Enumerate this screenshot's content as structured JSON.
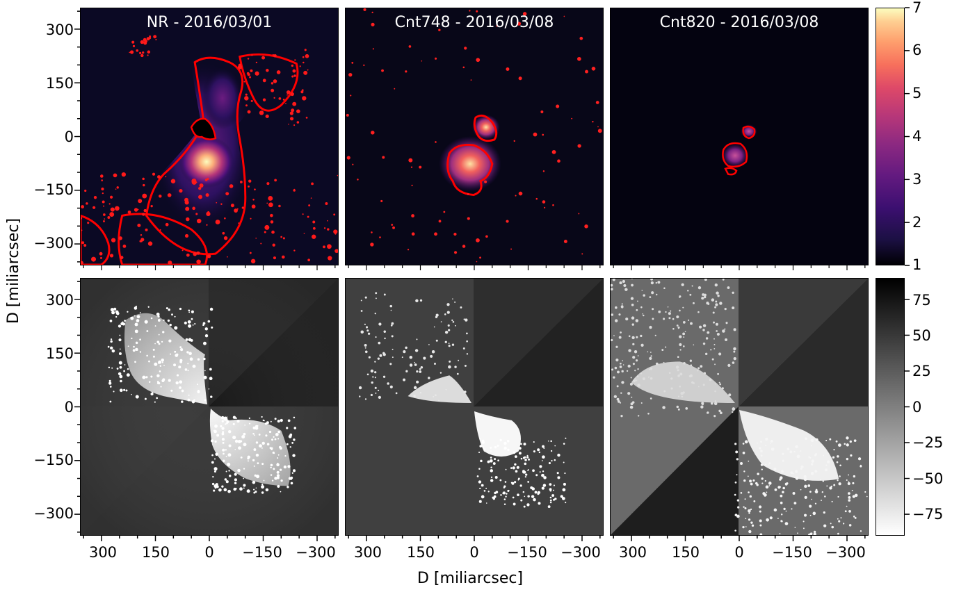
{
  "chart_data": [
    {
      "type": "heatmap",
      "title": "NR - 2016/03/01",
      "row": "intensity",
      "ylabel": "D [miliarcsec]",
      "xlabel": "D [miliarcsec]",
      "xlim": [
        360,
        -360
      ],
      "ylim": [
        -360,
        360
      ],
      "colormap": "magma",
      "contour_color": "#ff0000"
    },
    {
      "type": "heatmap",
      "title": "Cnt748 - 2016/03/08",
      "row": "intensity",
      "xlim": [
        360,
        -360
      ],
      "ylim": [
        -360,
        360
      ],
      "colormap": "magma",
      "contour_color": "#ff0000"
    },
    {
      "type": "heatmap",
      "title": "Cnt820 - 2016/03/08",
      "row": "intensity",
      "xlim": [
        360,
        -360
      ],
      "ylim": [
        -360,
        360
      ],
      "colormap": "magma",
      "contour_color": "#ff0000"
    },
    {
      "type": "heatmap",
      "row": "angle",
      "xlim": [
        360,
        -360
      ],
      "ylim": [
        -360,
        360
      ],
      "colormap": "gray_r"
    },
    {
      "type": "heatmap",
      "row": "angle",
      "xlim": [
        360,
        -360
      ],
      "ylim": [
        -360,
        360
      ],
      "colormap": "gray_r"
    },
    {
      "type": "heatmap",
      "row": "angle",
      "xlim": [
        360,
        -360
      ],
      "ylim": [
        -360,
        360
      ],
      "colormap": "gray_r"
    }
  ],
  "axes": {
    "ylabel": "D [miliarcsec]",
    "xlabel": "D [miliarcsec]",
    "y_ticks": [
      "300",
      "150",
      "0",
      "−150",
      "−300"
    ],
    "y_tick_values": [
      300,
      150,
      0,
      -150,
      -300
    ],
    "x_ticks": [
      "300",
      "150",
      "0",
      "−150",
      "−300"
    ],
    "x_tick_values": [
      300,
      150,
      0,
      -150,
      -300
    ]
  },
  "colorbar_top": {
    "colormap": "magma",
    "range": [
      1,
      7
    ],
    "ticks": [
      "7",
      "6",
      "5",
      "4",
      "3",
      "2",
      "1"
    ],
    "tick_values": [
      7,
      6,
      5,
      4,
      3,
      2,
      1
    ]
  },
  "colorbar_bottom": {
    "colormap": "gray_r",
    "range": [
      -90,
      90
    ],
    "ticks": [
      "75",
      "50",
      "25",
      "0",
      "−25",
      "−50",
      "−75"
    ],
    "tick_values": [
      75,
      50,
      25,
      0,
      -25,
      -50,
      -75
    ]
  }
}
